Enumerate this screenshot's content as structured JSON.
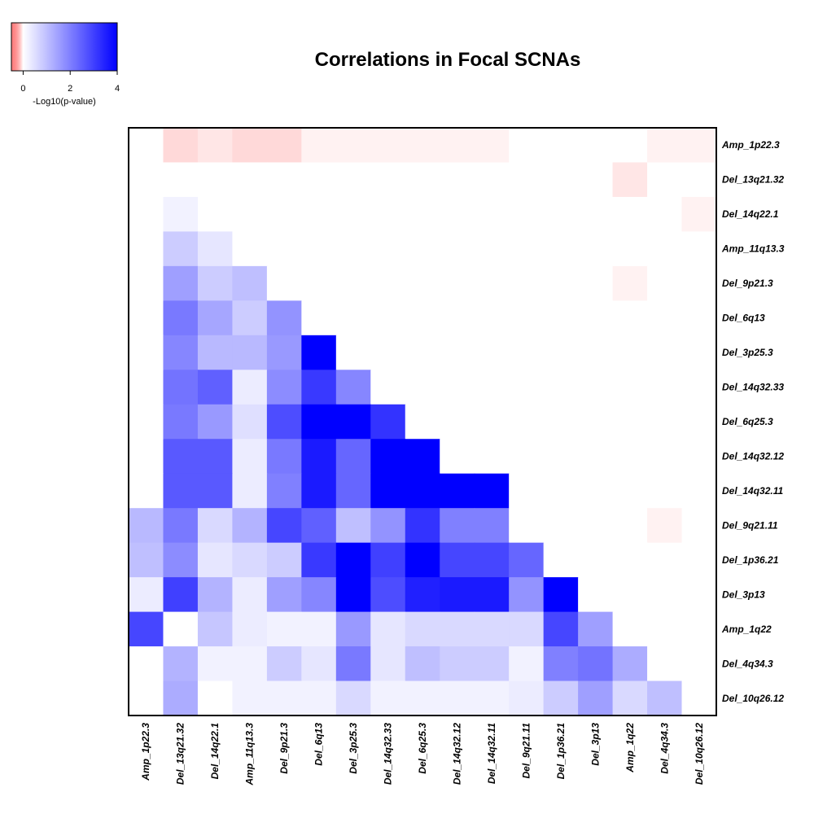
{
  "chart_data": {
    "type": "heatmap",
    "title": "Correlations in Focal SCNAs",
    "rows": [
      "Amp_1p22.3",
      "Del_13q21.32",
      "Del_14q22.1",
      "Amp_11q13.3",
      "Del_9p21.3",
      "Del_6q13",
      "Del_3p25.3",
      "Del_14q32.33",
      "Del_6q25.3",
      "Del_14q32.12",
      "Del_14q32.11",
      "Del_9q21.11",
      "Del_1p36.21",
      "Del_3p13",
      "Amp_1q22",
      "Del_4q34.3",
      "Del_10q26.12"
    ],
    "columns": [
      "Amp_1p22.3",
      "Del_13q21.32",
      "Del_14q22.1",
      "Amp_11q13.3",
      "Del_9p21.3",
      "Del_6q13",
      "Del_3p25.3",
      "Del_14q32.33",
      "Del_6q25.3",
      "Del_14q32.12",
      "Del_14q32.11",
      "Del_9q21.11",
      "Del_1p36.21",
      "Del_3p13",
      "Amp_1q22",
      "Del_4q34.3",
      "Del_10q26.12"
    ],
    "values": [
      [
        0,
        -0.3,
        -0.2,
        -0.3,
        -0.3,
        -0.1,
        -0.1,
        -0.1,
        -0.1,
        -0.1,
        -0.1,
        0,
        0,
        0,
        0,
        -0.1,
        -0.1
      ],
      [
        0,
        0,
        0,
        0,
        0,
        0,
        0,
        0,
        0,
        0,
        0,
        0,
        0,
        0,
        -0.2,
        0,
        0
      ],
      [
        0,
        0.2,
        0,
        0,
        0,
        0,
        0,
        0,
        0,
        0,
        0,
        0,
        0,
        0,
        0,
        0,
        -0.1
      ],
      [
        0,
        0.8,
        0.4,
        0,
        0,
        0,
        0,
        0,
        0,
        0,
        0,
        0,
        0,
        0,
        0,
        0,
        0
      ],
      [
        0,
        1.5,
        0.8,
        1.0,
        0,
        0,
        0,
        0,
        0,
        0,
        0,
        0,
        0,
        0,
        -0.1,
        0,
        0
      ],
      [
        0,
        2.1,
        1.4,
        0.8,
        1.7,
        0,
        0,
        0,
        0,
        0,
        0,
        0,
        0,
        0,
        0,
        0,
        0
      ],
      [
        0,
        1.9,
        1.1,
        1.1,
        1.6,
        4.0,
        0,
        0,
        0,
        0,
        0,
        0,
        0,
        0,
        0,
        0,
        0
      ],
      [
        0,
        2.2,
        2.5,
        0.3,
        1.8,
        3.1,
        1.9,
        0,
        0,
        0,
        0,
        0,
        0,
        0,
        0,
        0,
        0
      ],
      [
        0,
        2.1,
        1.6,
        0.5,
        2.8,
        4.0,
        4.0,
        3.2,
        0,
        0,
        0,
        0,
        0,
        0,
        0,
        0,
        0
      ],
      [
        0,
        2.6,
        2.6,
        0.3,
        2.1,
        3.6,
        2.4,
        4.0,
        4.0,
        0,
        0,
        0,
        0,
        0,
        0,
        0,
        0
      ],
      [
        0,
        2.6,
        2.6,
        0.3,
        2.0,
        3.6,
        2.4,
        4.0,
        4.0,
        4.0,
        4.0,
        0,
        0,
        0,
        0,
        0,
        0
      ],
      [
        1.1,
        2.1,
        0.6,
        1.2,
        2.9,
        2.5,
        1.0,
        1.7,
        3.2,
        2.0,
        2.0,
        0,
        0,
        0,
        0,
        -0.1,
        0
      ],
      [
        1.0,
        1.8,
        0.4,
        0.6,
        0.8,
        3.1,
        4.0,
        3.0,
        4.0,
        2.9,
        2.9,
        2.4,
        0,
        0,
        0,
        0,
        0
      ],
      [
        0.3,
        3.0,
        1.2,
        0.3,
        1.5,
        1.9,
        4.0,
        2.8,
        3.5,
        3.6,
        3.6,
        1.7,
        4.0,
        0,
        0,
        0,
        0
      ],
      [
        2.9,
        0,
        0.9,
        0.3,
        0.2,
        0.2,
        1.6,
        0.4,
        0.6,
        0.6,
        0.6,
        0.6,
        2.9,
        1.5,
        0,
        0,
        0
      ],
      [
        0,
        1.2,
        0.2,
        0.2,
        0.8,
        0.4,
        2.1,
        0.4,
        1.0,
        0.8,
        0.8,
        0.2,
        2.0,
        2.2,
        1.3,
        0,
        0
      ],
      [
        0,
        1.3,
        0,
        0.2,
        0.2,
        0.2,
        0.6,
        0.2,
        0.2,
        0.2,
        0.2,
        0.3,
        0.8,
        1.5,
        0.6,
        1.0,
        0
      ]
    ],
    "colorbar": {
      "label": "-Log10(p-value)",
      "ticks": [
        "0",
        "2",
        "4"
      ],
      "range": [
        -0.5,
        4
      ],
      "low_color": "#ff0000",
      "mid_color": "#ffffff",
      "high_color": "#0000ff"
    }
  }
}
